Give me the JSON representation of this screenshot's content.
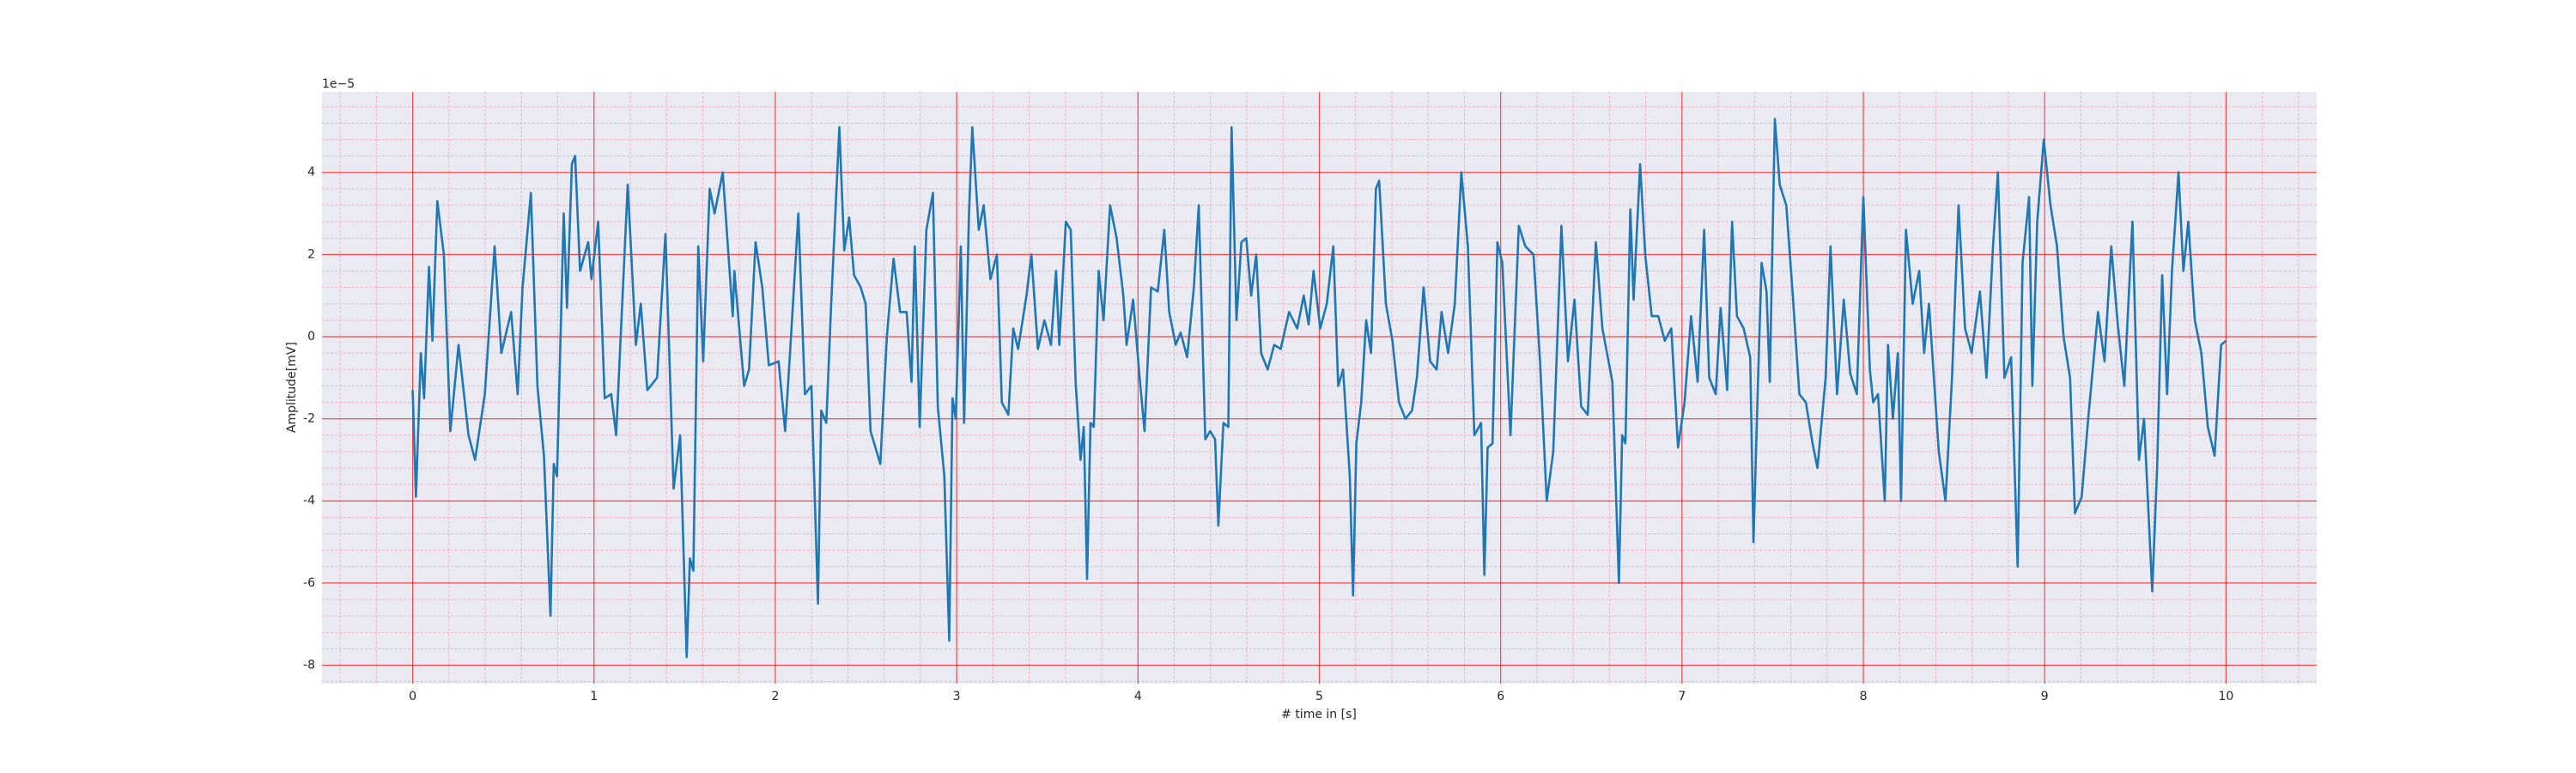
{
  "chart_data": {
    "type": "line",
    "xlabel": "# time in [s]",
    "ylabel": "Amplitude[mV]",
    "y_offset_label": "1e−5",
    "xlim": [
      -0.5,
      10.5
    ],
    "ylim": [
      -8.45,
      5.96
    ],
    "xticks": [
      0,
      1,
      2,
      3,
      4,
      5,
      6,
      7,
      8,
      9,
      10
    ],
    "yticks": [
      -8,
      -6,
      -4,
      -2,
      0,
      2,
      4
    ],
    "xminorticks": [
      -0.4,
      -0.2,
      0.2,
      0.4,
      0.6,
      0.8,
      1.2,
      1.4,
      1.6,
      1.8,
      2.2,
      2.4,
      2.6,
      2.8,
      3.2,
      3.4,
      3.6,
      3.8,
      4.2,
      4.4,
      4.6,
      4.8,
      5.2,
      5.4,
      5.6,
      5.8,
      6.2,
      6.4,
      6.6,
      6.8,
      7.2,
      7.4,
      7.6,
      7.8,
      8.2,
      8.4,
      8.6,
      8.8,
      9.2,
      9.4,
      9.6,
      9.8,
      10.2,
      10.4
    ],
    "yminorticks": [
      -8.4,
      -7.6,
      -7.2,
      -6.8,
      -6.4,
      -5.6,
      -5.2,
      -4.8,
      -4.4,
      -3.6,
      -3.2,
      -2.8,
      -2.4,
      -1.6,
      -1.2,
      -0.8,
      -0.4,
      0.4,
      0.8,
      1.2,
      1.6,
      2.4,
      2.8,
      3.2,
      3.6,
      4.4,
      4.8,
      5.2,
      5.6
    ],
    "grid": true,
    "minor_grid": true,
    "grid_color": "#ff0000",
    "minor_grid_color": "#f5a0b4",
    "background": "#eaeaf2",
    "x": [
      0,
      0.018,
      0.045,
      0.063,
      0.09,
      0.109,
      0.136,
      0.172,
      0.208,
      0.253,
      0.308,
      0.344,
      0.398,
      0.452,
      0.489,
      0.543,
      0.579,
      0.606,
      0.652,
      0.688,
      0.724,
      0.76,
      0.778,
      0.796,
      0.833,
      0.851,
      0.878,
      0.896,
      0.923,
      0.968,
      0.986,
      1.023,
      1.059,
      1.095,
      1.122,
      1.186,
      1.231,
      1.258,
      1.294,
      1.348,
      1.394,
      1.439,
      1.475,
      1.511,
      1.529,
      1.548,
      1.575,
      1.602,
      1.638,
      1.665,
      1.71,
      1.765,
      1.774,
      1.828,
      1.855,
      1.891,
      1.928,
      1.964,
      2.018,
      2.054,
      2.081,
      2.127,
      2.163,
      2.199,
      2.235,
      2.253,
      2.281,
      2.308,
      2.353,
      2.38,
      2.407,
      2.434,
      2.471,
      2.498,
      2.525,
      2.579,
      2.615,
      2.652,
      2.688,
      2.724,
      2.751,
      2.769,
      2.796,
      2.833,
      2.869,
      2.896,
      2.932,
      2.959,
      2.977,
      2.995,
      3.023,
      3.041,
      3.068,
      3.086,
      3.122,
      3.149,
      3.186,
      3.222,
      3.249,
      3.285,
      3.312,
      3.339,
      3.385,
      3.412,
      3.448,
      3.484,
      3.52,
      3.548,
      3.566,
      3.602,
      3.629,
      3.656,
      3.683,
      3.701,
      3.719,
      3.738,
      3.756,
      3.783,
      3.81,
      3.846,
      3.882,
      3.919,
      3.937,
      3.973,
      4.009,
      4.036,
      4.072,
      4.109,
      4.145,
      4.172,
      4.208,
      4.235,
      4.271,
      4.308,
      4.335,
      4.371,
      4.398,
      4.425,
      4.443,
      4.471,
      4.498,
      4.516,
      4.543,
      4.57,
      4.597,
      4.624,
      4.652,
      4.679,
      4.715,
      4.751,
      4.787,
      4.833,
      4.878,
      4.914,
      4.941,
      4.968,
      5.005,
      5.041,
      5.077,
      5.104,
      5.131,
      5.168,
      5.186,
      5.204,
      5.231,
      5.258,
      5.285,
      5.312,
      5.33,
      5.367,
      5.403,
      5.439,
      5.475,
      5.511,
      5.538,
      5.575,
      5.611,
      5.647,
      5.674,
      5.71,
      5.747,
      5.783,
      5.819,
      5.855,
      5.892,
      5.91,
      5.928,
      5.955,
      5.982,
      6.009,
      6.054,
      6.1,
      6.136,
      6.181,
      6.217,
      6.254,
      6.29,
      6.335,
      6.371,
      6.407,
      6.444,
      6.48,
      6.525,
      6.561,
      6.616,
      6.652,
      6.67,
      6.688,
      6.715,
      6.733,
      6.769,
      6.797,
      6.833,
      6.869,
      6.905,
      6.941,
      6.978,
      7.014,
      7.05,
      7.086,
      7.122,
      7.15,
      7.186,
      7.213,
      7.249,
      7.276,
      7.303,
      7.34,
      7.376,
      7.394,
      7.421,
      7.439,
      7.466,
      7.484,
      7.512,
      7.539,
      7.575,
      7.611,
      7.647,
      7.683,
      7.72,
      7.747,
      7.792,
      7.819,
      7.855,
      7.892,
      7.928,
      7.964,
      8.0,
      8.036,
      8.054,
      8.081,
      8.118,
      8.136,
      8.163,
      8.19,
      8.208,
      8.235,
      8.272,
      8.308,
      8.335,
      8.362,
      8.416,
      8.453,
      8.489,
      8.525,
      8.561,
      8.597,
      8.643,
      8.679,
      8.715,
      8.742,
      8.778,
      8.815,
      8.851,
      8.878,
      8.914,
      8.932,
      8.959,
      8.995,
      9.032,
      9.068,
      9.104,
      9.14,
      9.167,
      9.204,
      9.24,
      9.294,
      9.33,
      9.367,
      9.403,
      9.439,
      9.484,
      9.52,
      9.548,
      9.593,
      9.62,
      9.648,
      9.675,
      9.702,
      9.738,
      9.765,
      9.792,
      9.828,
      9.864,
      9.9,
      9.937,
      9.973,
      10.0
    ],
    "series": [
      {
        "color": "#1f77b4",
        "values": [
          -1.3,
          -3.9,
          -0.4,
          -1.5,
          1.7,
          -0.1,
          3.3,
          2.0,
          -2.3,
          -0.2,
          -2.4,
          -3.0,
          -1.4,
          2.2,
          -0.4,
          0.6,
          -1.4,
          1.2,
          3.5,
          -1.2,
          -2.9,
          -6.8,
          -3.1,
          -3.4,
          3.0,
          0.7,
          4.2,
          4.4,
          1.6,
          2.3,
          1.4,
          2.8,
          -1.5,
          -1.4,
          -2.4,
          3.7,
          -0.2,
          0.8,
          -1.3,
          -1.0,
          2.5,
          -3.7,
          -2.4,
          -7.8,
          -5.4,
          -5.7,
          2.2,
          -0.6,
          3.6,
          3.0,
          4.0,
          0.5,
          1.6,
          -1.2,
          -0.8,
          2.3,
          1.2,
          -0.7,
          -0.6,
          -2.3,
          -0.4,
          3.0,
          -1.4,
          -1.2,
          -6.5,
          -1.8,
          -2.1,
          0.8,
          5.1,
          2.1,
          2.9,
          1.5,
          1.2,
          0.8,
          -2.3,
          -3.1,
          0.0,
          1.9,
          0.6,
          0.6,
          -1.1,
          2.2,
          -2.2,
          2.6,
          3.5,
          -1.7,
          -3.4,
          -7.4,
          -1.5,
          -2.0,
          2.2,
          -2.1,
          3.0,
          5.1,
          2.6,
          3.2,
          1.4,
          2.0,
          -1.6,
          -1.9,
          0.2,
          -0.3,
          1.0,
          2.0,
          -0.3,
          0.4,
          -0.2,
          1.6,
          -0.2,
          2.8,
          2.6,
          -1.1,
          -3.0,
          -2.2,
          -5.9,
          -2.1,
          -2.2,
          1.6,
          0.4,
          3.2,
          2.4,
          1.0,
          -0.2,
          0.9,
          -1.0,
          -2.3,
          1.2,
          1.1,
          2.6,
          0.6,
          -0.2,
          0.1,
          -0.5,
          1.2,
          3.2,
          -2.5,
          -2.3,
          -2.5,
          -4.6,
          -2.1,
          -2.2,
          5.1,
          0.4,
          2.3,
          2.4,
          1.0,
          2.0,
          -0.4,
          -0.8,
          -0.2,
          -0.3,
          0.6,
          0.2,
          1.0,
          0.3,
          1.6,
          0.2,
          0.8,
          2.2,
          -1.2,
          -0.8,
          -3.4,
          -6.3,
          -2.6,
          -1.6,
          0.4,
          -0.4,
          3.6,
          3.8,
          0.8,
          -0.1,
          -1.6,
          -2.0,
          -1.8,
          -1.0,
          1.2,
          -0.6,
          -0.8,
          0.6,
          -0.4,
          0.8,
          4.0,
          2.2,
          -2.4,
          -2.1,
          -5.8,
          -2.7,
          -2.6,
          2.3,
          1.8,
          -2.4,
          2.7,
          2.2,
          2.0,
          -0.6,
          -4.0,
          -2.8,
          2.7,
          -0.6,
          0.9,
          -1.7,
          -1.9,
          2.3,
          0.2,
          -1.1,
          -6.0,
          -2.4,
          -2.6,
          3.1,
          0.9,
          4.2,
          2.0,
          0.5,
          0.5,
          -0.1,
          0.2,
          -2.7,
          -1.6,
          0.5,
          -1.1,
          2.6,
          -1.0,
          -1.4,
          0.7,
          -1.3,
          2.8,
          0.5,
          0.2,
          -0.5,
          -5.0,
          -0.8,
          1.8,
          1.1,
          -1.1,
          5.3,
          3.7,
          3.2,
          1.0,
          -1.4,
          -1.6,
          -2.6,
          -3.2,
          -1.0,
          2.2,
          -1.4,
          0.9,
          -0.9,
          -1.4,
          3.4,
          -0.8,
          -1.6,
          -1.4,
          -4.0,
          -0.2,
          -2.0,
          -0.4,
          -4.0,
          2.6,
          0.8,
          1.6,
          -0.4,
          0.8,
          -2.8,
          -4.0,
          -1.0,
          3.2,
          0.2,
          -0.4,
          1.1,
          -1.0,
          2.2,
          4.0,
          -1.0,
          -0.5,
          -5.6,
          1.8,
          3.4,
          -1.2,
          2.8,
          4.8,
          3.2,
          2.2,
          0.0,
          -1.0,
          -4.3,
          -3.9,
          -2.0,
          0.6,
          -0.6,
          2.2,
          0.3,
          -1.2,
          2.8,
          -3.0,
          -2.0,
          -6.2,
          -3.2,
          1.5,
          -1.4,
          1.6,
          4.0,
          1.6,
          2.8,
          0.4,
          -0.4,
          -2.2,
          -2.9,
          -0.2,
          -0.1
        ]
      }
    ]
  }
}
